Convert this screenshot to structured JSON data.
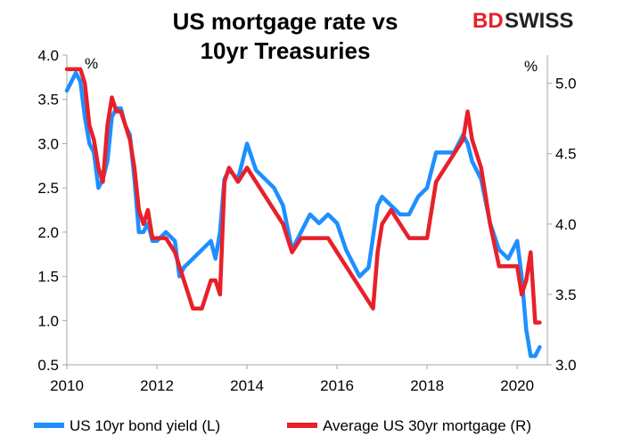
{
  "logo": {
    "part1": "BD",
    "part2": "SWISS"
  },
  "chart_data": {
    "type": "line",
    "title_lines": [
      "US mortgage rate vs",
      "10yr Treasuries"
    ],
    "left_unit": "%",
    "right_unit": "%",
    "x_ticks": [
      "2010",
      "2012",
      "2014",
      "2016",
      "2018",
      "2020"
    ],
    "x_tick_values": [
      2010,
      2012,
      2014,
      2016,
      2018,
      2020
    ],
    "xlim": [
      2010,
      2020.67
    ],
    "left_ticks": [
      "0.5",
      "1.0",
      "1.5",
      "2.0",
      "2.5",
      "3.0",
      "3.5",
      "4.0"
    ],
    "left_tick_values": [
      0.5,
      1.0,
      1.5,
      2.0,
      2.5,
      3.0,
      3.5,
      4.0
    ],
    "ylim_left": [
      0.5,
      4.0
    ],
    "right_ticks": [
      "3.0",
      "3.5",
      "4.0",
      "4.5",
      "5.0"
    ],
    "right_tick_values": [
      3.0,
      3.5,
      4.0,
      4.5,
      5.0
    ],
    "ylim_right": [
      3.0,
      5.2
    ],
    "grid": false,
    "legend_position": "bottom",
    "series": [
      {
        "name": "US 10yr bond yield (L)",
        "axis": "left",
        "color": "#1f8fff",
        "x": [
          2010.0,
          2010.1,
          2010.2,
          2010.3,
          2010.4,
          2010.5,
          2010.6,
          2010.7,
          2010.8,
          2010.9,
          2011.0,
          2011.1,
          2011.2,
          2011.3,
          2011.4,
          2011.5,
          2011.6,
          2011.7,
          2011.8,
          2011.9,
          2012.0,
          2012.2,
          2012.4,
          2012.5,
          2012.6,
          2012.8,
          2013.0,
          2013.2,
          2013.3,
          2013.4,
          2013.5,
          2013.6,
          2013.8,
          2014.0,
          2014.2,
          2014.4,
          2014.6,
          2014.8,
          2015.0,
          2015.2,
          2015.4,
          2015.6,
          2015.8,
          2016.0,
          2016.2,
          2016.5,
          2016.7,
          2016.9,
          2017.0,
          2017.2,
          2017.4,
          2017.6,
          2017.8,
          2018.0,
          2018.2,
          2018.4,
          2018.6,
          2018.8,
          2018.9,
          2019.0,
          2019.2,
          2019.4,
          2019.6,
          2019.8,
          2020.0,
          2020.1,
          2020.2,
          2020.3,
          2020.4,
          2020.5
        ],
        "values": [
          3.6,
          3.7,
          3.8,
          3.7,
          3.3,
          3.0,
          2.9,
          2.5,
          2.6,
          2.8,
          3.3,
          3.4,
          3.4,
          3.2,
          3.1,
          2.6,
          2.0,
          2.0,
          2.1,
          1.9,
          1.9,
          2.0,
          1.9,
          1.5,
          1.6,
          1.7,
          1.8,
          1.9,
          1.7,
          2.0,
          2.6,
          2.7,
          2.6,
          3.0,
          2.7,
          2.6,
          2.5,
          2.3,
          1.8,
          2.0,
          2.2,
          2.1,
          2.2,
          2.1,
          1.8,
          1.5,
          1.6,
          2.3,
          2.4,
          2.3,
          2.2,
          2.2,
          2.4,
          2.5,
          2.9,
          2.9,
          2.9,
          3.1,
          3.0,
          2.8,
          2.6,
          2.1,
          1.8,
          1.7,
          1.9,
          1.5,
          0.9,
          0.6,
          0.6,
          0.7
        ]
      },
      {
        "name": "Average US 30yr mortgage (R)",
        "axis": "right",
        "color": "#e8202a",
        "x": [
          2010.0,
          2010.1,
          2010.2,
          2010.3,
          2010.4,
          2010.5,
          2010.6,
          2010.7,
          2010.8,
          2010.9,
          2011.0,
          2011.1,
          2011.2,
          2011.3,
          2011.4,
          2011.5,
          2011.6,
          2011.7,
          2011.8,
          2011.9,
          2012.0,
          2012.2,
          2012.4,
          2012.6,
          2012.8,
          2013.0,
          2013.2,
          2013.3,
          2013.4,
          2013.5,
          2013.6,
          2013.8,
          2014.0,
          2014.2,
          2014.4,
          2014.6,
          2014.8,
          2015.0,
          2015.2,
          2015.4,
          2015.6,
          2015.8,
          2016.0,
          2016.2,
          2016.4,
          2016.6,
          2016.8,
          2016.9,
          2017.0,
          2017.2,
          2017.4,
          2017.6,
          2017.8,
          2018.0,
          2018.2,
          2018.4,
          2018.6,
          2018.8,
          2018.9,
          2019.0,
          2019.2,
          2019.4,
          2019.6,
          2019.8,
          2020.0,
          2020.1,
          2020.2,
          2020.3,
          2020.4,
          2020.5
        ],
        "values": [
          5.1,
          5.1,
          5.1,
          5.1,
          5.0,
          4.7,
          4.6,
          4.4,
          4.3,
          4.7,
          4.9,
          4.8,
          4.8,
          4.7,
          4.6,
          4.4,
          4.1,
          4.0,
          4.1,
          3.9,
          3.9,
          3.9,
          3.8,
          3.6,
          3.4,
          3.4,
          3.6,
          3.6,
          3.5,
          4.3,
          4.4,
          4.3,
          4.4,
          4.3,
          4.2,
          4.1,
          4.0,
          3.8,
          3.9,
          3.9,
          3.9,
          3.9,
          3.8,
          3.7,
          3.6,
          3.5,
          3.4,
          3.8,
          4.0,
          4.1,
          4.0,
          3.9,
          3.9,
          3.9,
          4.3,
          4.4,
          4.5,
          4.6,
          4.8,
          4.6,
          4.4,
          4.0,
          3.7,
          3.7,
          3.7,
          3.5,
          3.6,
          3.8,
          3.3,
          3.3
        ]
      }
    ]
  }
}
